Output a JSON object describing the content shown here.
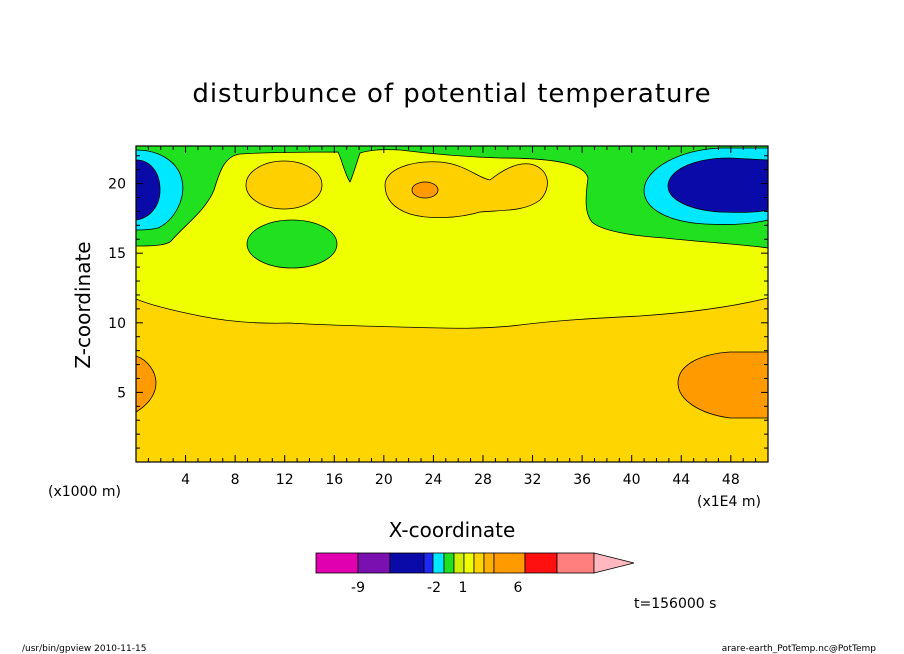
{
  "chart_data": {
    "type": "heatmap",
    "title": "disturbunce of potential temperature",
    "xlabel": "X-coordinate",
    "ylabel": "Z-coordinate",
    "x_unit": "(x1000 m)",
    "x_scale_note": "(x1E4 m)",
    "xlim": [
      0,
      51
    ],
    "ylim": [
      0,
      22.7
    ],
    "x_ticks": [
      4,
      8,
      12,
      16,
      20,
      24,
      28,
      32,
      36,
      40,
      44,
      48
    ],
    "y_ticks": [
      5,
      10,
      15,
      20
    ],
    "colorbar_labels": [
      {
        "value": -9,
        "label": "-9"
      },
      {
        "value": -2,
        "label": "-2"
      },
      {
        "value": 1,
        "label": "1"
      },
      {
        "value": 6,
        "label": "6"
      }
    ],
    "colors": {
      "magenta": "#e000b0",
      "purple": "#7b10b0",
      "dark_blue": "#0a0aa8",
      "blue": "#1e28f0",
      "cyan": "#00e8ff",
      "green": "#20e020",
      "yellow_green": "#cff000",
      "yellow": "#f0ff00",
      "gold": "#ffd500",
      "light_orange": "#ffb000",
      "orange": "#ff9a00",
      "red": "#ff1010",
      "salmon": "#ff7f7f",
      "pink": "#ffb8c0"
    },
    "regions": [
      {
        "level": "gold",
        "desc": "lower layer, z 0 to ~11"
      },
      {
        "level": "yellow",
        "desc": "upper layer, z ~11 to ~22"
      },
      {
        "level": "green",
        "desc": "top band and patch at x~12, z~16"
      },
      {
        "level": "light_orange",
        "desc": "warm cells near x~12, x~24-32, z~20"
      },
      {
        "level": "orange",
        "desc": "warm cells near x~0, x~48 at z~5 and x~23 at z~19.7"
      },
      {
        "level": "cyan",
        "desc": "cold rims near x~0 and x~48 at z~20"
      },
      {
        "level": "dark_blue",
        "desc": "cold cores near x~0 and x~48 at z~20"
      }
    ]
  },
  "time_label": "t=156000 s",
  "footer": {
    "left": "/usr/bin/gpview  2010-11-15",
    "right": "arare-earth_PotTemp.nc@PotTemp"
  }
}
